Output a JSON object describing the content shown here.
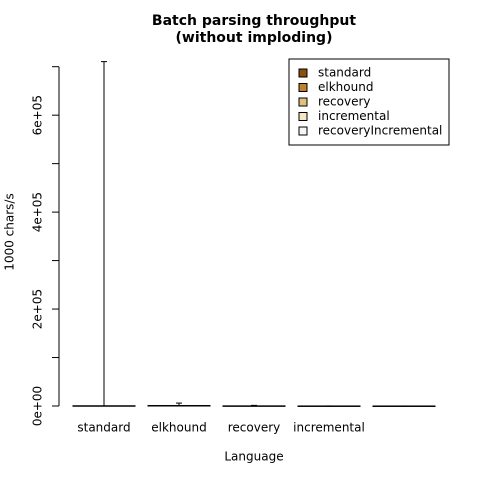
{
  "chart_data": {
    "type": "bar",
    "title": "Batch parsing throughput",
    "subtitle": "(without imploding)",
    "x_label": "Language",
    "y_label": "1000 chars/s",
    "categories": [
      "standard",
      "elkhound",
      "recovery",
      "incremental",
      null
    ],
    "series": [
      {
        "name": "standard",
        "color": "#8c510a"
      },
      {
        "name": "elkhound",
        "color": "#bf812d"
      },
      {
        "name": "recovery",
        "color": "#dfc27d"
      },
      {
        "name": "incremental",
        "color": "#f6e8c3"
      },
      {
        "name": "recoveryIncremental",
        "color": "#f5f5f5"
      }
    ],
    "values": [
      500,
      1000,
      300,
      100,
      50
    ],
    "errors": [
      710000,
      5000,
      1000,
      0,
      0
    ],
    "ylim": [
      0,
      720000
    ],
    "yticks": [
      {
        "value": 0,
        "label": "0e+00"
      },
      {
        "value": 200000,
        "label": "2e+05"
      },
      {
        "value": 400000,
        "label": "4e+05"
      },
      {
        "value": 600000,
        "label": "6e+05"
      }
    ],
    "yminor_ticks": [
      100000,
      300000,
      500000,
      700000
    ],
    "legend": "top-right"
  }
}
